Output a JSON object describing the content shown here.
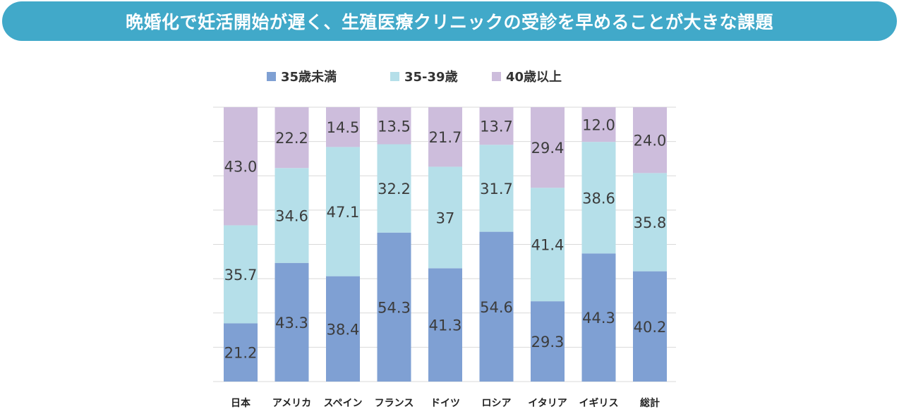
{
  "title": "晩婚化で妊活開始が遅く、生殖医療クリニックの受診を早めることが大きな課題",
  "colors": {
    "title_bg": "#41a9c9",
    "series": [
      "#7fa0d3",
      "#b5dfe9",
      "#cdbddc"
    ],
    "value_text": "#3c3c3c",
    "grid": "#d9d9d9"
  },
  "chart_data": {
    "type": "bar",
    "stacked": true,
    "percent": true,
    "categories": [
      "日本",
      "アメリカ",
      "スペイン",
      "フランス",
      "ドイツ",
      "ロシア",
      "イタリア",
      "イギリス",
      "総計"
    ],
    "series": [
      {
        "name": "35歳未満",
        "values": [
          21.2,
          43.3,
          38.4,
          54.3,
          41.3,
          54.6,
          29.3,
          44.3,
          40.2
        ],
        "labels": [
          "21.2",
          "43.3",
          "38.4",
          "54.3",
          "41.3",
          "54.6",
          "29.3",
          "44.3",
          "40.2"
        ]
      },
      {
        "name": "35-39歳",
        "values": [
          35.7,
          34.6,
          47.1,
          32.2,
          37,
          31.7,
          41.4,
          38.6,
          35.8
        ],
        "labels": [
          "35.7",
          "34.6",
          "47.1",
          "32.2",
          "37",
          "31.7",
          "41.4",
          "38.6",
          "35.8"
        ]
      },
      {
        "name": "40歳以上",
        "values": [
          43.0,
          22.2,
          14.5,
          13.5,
          21.7,
          13.7,
          29.4,
          12.0,
          24.0
        ],
        "labels": [
          "43.0",
          "22.2",
          "14.5",
          "13.5",
          "21.7",
          "13.7",
          "29.4",
          "12.0",
          "24.0"
        ]
      }
    ],
    "ylim": [
      0,
      100
    ],
    "grid": true,
    "legend_position": "top-center"
  }
}
